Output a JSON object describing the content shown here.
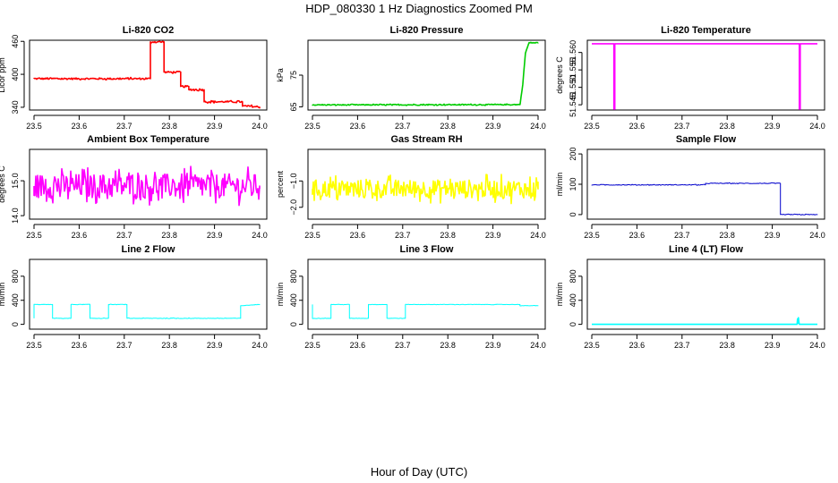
{
  "figure": {
    "title": "HDP_080330  1 Hz Diagnostics Zoomed PM",
    "xlabel": "Hour of Day (UTC)"
  },
  "chart_data": [
    {
      "type": "line",
      "title": "Li-820 CO2",
      "ylabel": "Licor ppm",
      "color": "#ff0000",
      "xlim": [
        23.5,
        24.0
      ],
      "xticks": [
        23.5,
        23.6,
        23.7,
        23.8,
        23.9,
        24.0
      ],
      "xtick_labels": [
        "23.5",
        "23.6",
        "23.7",
        "23.8",
        "23.9",
        "24.0"
      ],
      "ylim": [
        335,
        462
      ],
      "yticks": [
        340,
        400,
        460
      ],
      "ytick_labels": [
        "340",
        "400",
        "460"
      ],
      "noise": 1.5,
      "series": [
        {
          "x": [
            23.5,
            23.5,
            23.758,
            23.758,
            23.788,
            23.788,
            23.825,
            23.825,
            23.843,
            23.843,
            23.877,
            23.877,
            23.962,
            23.962,
            23.98,
            24.0
          ],
          "values": [
            392,
            392,
            392,
            459,
            459,
            404,
            404,
            378,
            378,
            372,
            372,
            350,
            350,
            342,
            342,
            340
          ]
        }
      ]
    },
    {
      "type": "line",
      "title": "Li-820 Pressure",
      "ylabel": "kPa",
      "color": "#00cc00",
      "xlim": [
        23.5,
        24.0
      ],
      "xticks": [
        23.5,
        23.6,
        23.7,
        23.8,
        23.9,
        24.0
      ],
      "xtick_labels": [
        "23.5",
        "23.6",
        "23.7",
        "23.8",
        "23.9",
        "24.0"
      ],
      "ylim": [
        64,
        86
      ],
      "yticks": [
        65,
        75
      ],
      "ytick_labels": [
        "65",
        "75"
      ],
      "noise": 0.15,
      "series": [
        {
          "x": [
            23.5,
            23.95,
            23.96,
            23.966,
            23.972,
            23.98,
            24.0
          ],
          "values": [
            65.6,
            65.7,
            65.7,
            72,
            82,
            85.2,
            85.2
          ]
        }
      ]
    },
    {
      "type": "line",
      "title": "Li-820 Temperature",
      "ylabel": "degrees C",
      "color": "#ff00ff",
      "xlim": [
        23.5,
        24.0
      ],
      "xticks": [
        23.5,
        23.6,
        23.7,
        23.8,
        23.9,
        24.0
      ],
      "xtick_labels": [
        "23.5",
        "23.6",
        "23.7",
        "23.8",
        "23.9",
        "24.0"
      ],
      "ylim": [
        51.5435,
        51.5635
      ],
      "yticks": [
        51.545,
        51.55,
        51.555,
        51.56
      ],
      "ytick_labels": [
        "51.545",
        "51.550",
        "51.555",
        "51.560"
      ],
      "noise": 0,
      "series": [
        {
          "x": [
            23.5,
            23.549,
            23.549,
            23.551,
            23.551,
            23.96,
            23.96,
            23.962,
            23.962,
            24.0
          ],
          "values": [
            51.5625,
            51.5625,
            51.5435,
            51.5435,
            51.5625,
            51.5625,
            51.5435,
            51.5435,
            51.5625,
            51.5625
          ]
        }
      ]
    },
    {
      "type": "line",
      "title": "Ambient Box Temperature",
      "ylabel": "degrees C",
      "color": "#ff00ff",
      "xlim": [
        23.5,
        24.0
      ],
      "xticks": [
        23.5,
        23.6,
        23.7,
        23.8,
        23.9,
        24.0
      ],
      "xtick_labels": [
        "23.5",
        "23.6",
        "23.7",
        "23.8",
        "23.9",
        "24.0"
      ],
      "ylim": [
        13.9,
        15.9
      ],
      "yticks": [
        14.0,
        15.0
      ],
      "ytick_labels": [
        "14.0",
        "15.0"
      ],
      "noise": 0.35,
      "series": [
        {
          "x": [
            23.5,
            24.0
          ],
          "values": [
            14.85,
            14.85
          ]
        }
      ]
    },
    {
      "type": "line",
      "title": "Gas Stream RH",
      "ylabel": "percent",
      "color": "#ffff00",
      "xlim": [
        23.5,
        24.0
      ],
      "xticks": [
        23.5,
        23.6,
        23.7,
        23.8,
        23.9,
        24.0
      ],
      "xtick_labels": [
        "23.5",
        "23.6",
        "23.7",
        "23.8",
        "23.9",
        "24.0"
      ],
      "ylim": [
        -2.45,
        0.2
      ],
      "yticks": [
        -2.0,
        -1.0
      ],
      "ytick_labels": [
        "−2.0",
        "−1.0"
      ],
      "noise": 0.35,
      "series": [
        {
          "x": [
            23.5,
            24.0
          ],
          "values": [
            -1.3,
            -1.3
          ]
        }
      ]
    },
    {
      "type": "line",
      "title": "Sample Flow",
      "ylabel": "ml/min",
      "color": "#0000cc",
      "xlim": [
        23.5,
        24.0
      ],
      "xticks": [
        23.5,
        23.6,
        23.7,
        23.8,
        23.9,
        24.0
      ],
      "xtick_labels": [
        "23.5",
        "23.6",
        "23.7",
        "23.8",
        "23.9",
        "24.0"
      ],
      "ylim": [
        -15,
        215
      ],
      "yticks": [
        0,
        100,
        200
      ],
      "ytick_labels": [
        "0",
        "100",
        "200"
      ],
      "noise": 1.2,
      "series": [
        {
          "x": [
            23.5,
            23.752,
            23.752,
            23.918,
            23.918,
            24.0
          ],
          "values": [
            98,
            98,
            103,
            103,
            0,
            0
          ]
        }
      ]
    },
    {
      "type": "line",
      "title": "Line 2 Flow",
      "ylabel": "ml/min",
      "color": "#00ffff",
      "xlim": [
        23.5,
        24.0
      ],
      "xticks": [
        23.5,
        23.6,
        23.7,
        23.8,
        23.9,
        24.0
      ],
      "xtick_labels": [
        "23.5",
        "23.6",
        "23.7",
        "23.8",
        "23.9",
        "24.0"
      ],
      "ylim": [
        -80,
        1080
      ],
      "yticks": [
        0,
        400,
        800
      ],
      "ytick_labels": [
        "0",
        "400",
        "800"
      ],
      "noise": 4,
      "series": [
        {
          "x": [
            23.5,
            23.5,
            23.541,
            23.541,
            23.582,
            23.582,
            23.624,
            23.624,
            23.665,
            23.665,
            23.706,
            23.706,
            23.958,
            23.958,
            24.0
          ],
          "values": [
            100,
            330,
            330,
            100,
            100,
            330,
            330,
            100,
            100,
            330,
            330,
            100,
            100,
            310,
            330
          ]
        }
      ]
    },
    {
      "type": "line",
      "title": "Line 3 Flow",
      "ylabel": "ml/min",
      "color": "#00ffff",
      "xlim": [
        23.5,
        24.0
      ],
      "xticks": [
        23.5,
        23.6,
        23.7,
        23.8,
        23.9,
        24.0
      ],
      "xtick_labels": [
        "23.5",
        "23.6",
        "23.7",
        "23.8",
        "23.9",
        "24.0"
      ],
      "ylim": [
        -80,
        1080
      ],
      "yticks": [
        0,
        400,
        800
      ],
      "ytick_labels": [
        "0",
        "400",
        "800"
      ],
      "noise": 3,
      "series": [
        {
          "x": [
            23.5,
            23.5,
            23.541,
            23.541,
            23.582,
            23.582,
            23.624,
            23.624,
            23.665,
            23.665,
            23.706,
            23.706,
            23.96,
            23.96,
            24.0
          ],
          "values": [
            330,
            100,
            100,
            330,
            330,
            100,
            100,
            330,
            330,
            100,
            100,
            330,
            330,
            310,
            310
          ]
        }
      ]
    },
    {
      "type": "line",
      "title": "Line 4 (LT) Flow",
      "ylabel": "ml/min",
      "color": "#00ffff",
      "xlim": [
        23.5,
        24.0
      ],
      "xticks": [
        23.5,
        23.6,
        23.7,
        23.8,
        23.9,
        24.0
      ],
      "xtick_labels": [
        "23.5",
        "23.6",
        "23.7",
        "23.8",
        "23.9",
        "24.0"
      ],
      "ylim": [
        -80,
        1080
      ],
      "yticks": [
        0,
        400,
        800
      ],
      "ytick_labels": [
        "0",
        "400",
        "800"
      ],
      "noise": 0,
      "series": [
        {
          "x": [
            23.5,
            23.955,
            23.956,
            23.957,
            23.958,
            23.959,
            23.96,
            24.0
          ],
          "values": [
            0,
            0,
            90,
            20,
            110,
            40,
            0,
            0
          ]
        }
      ]
    }
  ]
}
